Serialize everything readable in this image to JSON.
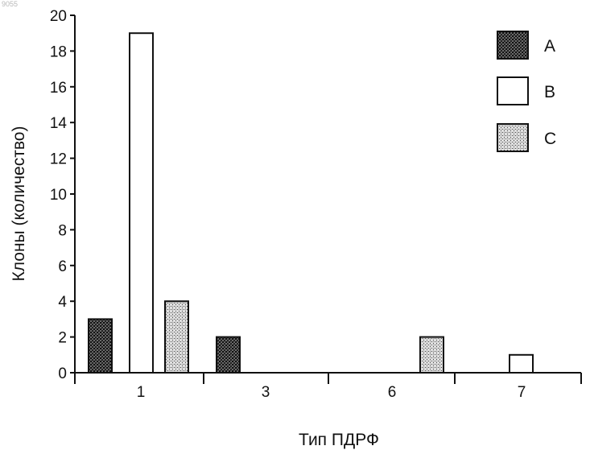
{
  "corner_mark": "9055",
  "chart_data": {
    "type": "bar",
    "title": "",
    "xlabel": "Тип ПДРФ",
    "ylabel": "Клоны (количество)",
    "ylim": [
      0,
      20
    ],
    "yticks": [
      0,
      2,
      4,
      6,
      8,
      10,
      12,
      14,
      16,
      18,
      20
    ],
    "categories": [
      "1",
      "3",
      "6",
      "7"
    ],
    "series": [
      {
        "name": "A",
        "values": [
          3,
          2,
          0,
          0
        ],
        "pattern": "dark-stipple",
        "color": "#2a2a2a"
      },
      {
        "name": "B",
        "values": [
          19,
          0,
          0,
          1
        ],
        "pattern": "none",
        "color": "#ffffff"
      },
      {
        "name": "C",
        "values": [
          4,
          0,
          2,
          0
        ],
        "pattern": "light-stipple",
        "color": "#9a9a9a"
      }
    ],
    "grid": false,
    "legend": "top-right"
  }
}
